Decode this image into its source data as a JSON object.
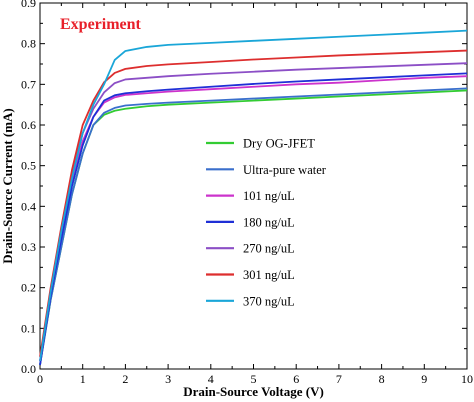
{
  "chart_data": {
    "type": "line",
    "title": "",
    "annotation": "Experiment",
    "annotation_color": "#e8202a",
    "xlabel": "Drain-Source  Voltage (V)",
    "ylabel": "Drain-Source  Current  (mA)",
    "xlim": [
      0,
      10
    ],
    "ylim": [
      0,
      0.9
    ],
    "xticks": [
      0,
      1,
      2,
      3,
      4,
      5,
      6,
      7,
      8,
      9,
      10
    ],
    "yticks": [
      0.0,
      0.1,
      0.2,
      0.3,
      0.4,
      0.5,
      0.6,
      0.7,
      0.8,
      0.9
    ],
    "ytick_labels": [
      "0.0",
      "0.1",
      "0.2",
      "0.3",
      "0.4",
      "0.5",
      "0.6",
      "0.7",
      "0.8",
      "0.9"
    ],
    "grid": false,
    "legend_position": "center-right",
    "x": [
      0,
      0.25,
      0.5,
      0.75,
      1.0,
      1.25,
      1.5,
      1.75,
      2.0,
      2.5,
      3,
      4,
      5,
      6,
      7,
      8,
      9,
      10
    ],
    "series": [
      {
        "name": "Dry OG-JFET",
        "color": "#33cc33",
        "values": [
          0.01,
          0.17,
          0.3,
          0.43,
          0.53,
          0.6,
          0.625,
          0.635,
          0.64,
          0.646,
          0.65,
          0.655,
          0.66,
          0.665,
          0.67,
          0.675,
          0.68,
          0.685
        ]
      },
      {
        "name": "Ultra-pure water",
        "color": "#3a6fcc",
        "values": [
          0.01,
          0.17,
          0.3,
          0.43,
          0.53,
          0.6,
          0.63,
          0.642,
          0.648,
          0.652,
          0.655,
          0.66,
          0.665,
          0.67,
          0.675,
          0.68,
          0.685,
          0.69
        ]
      },
      {
        "name": "101 ng/uL",
        "color": "#cc33cc",
        "values": [
          0.02,
          0.19,
          0.33,
          0.46,
          0.56,
          0.62,
          0.655,
          0.668,
          0.674,
          0.678,
          0.682,
          0.688,
          0.694,
          0.7,
          0.704,
          0.71,
          0.716,
          0.72
        ]
      },
      {
        "name": "180 ng/uL",
        "color": "#1f2fd6",
        "values": [
          0.01,
          0.18,
          0.32,
          0.45,
          0.55,
          0.62,
          0.66,
          0.673,
          0.678,
          0.683,
          0.687,
          0.694,
          0.701,
          0.707,
          0.712,
          0.717,
          0.722,
          0.727
        ]
      },
      {
        "name": "270 ng/uL",
        "color": "#8c4fc6",
        "values": [
          0.02,
          0.19,
          0.34,
          0.48,
          0.58,
          0.64,
          0.68,
          0.703,
          0.712,
          0.716,
          0.72,
          0.726,
          0.731,
          0.736,
          0.74,
          0.744,
          0.748,
          0.752
        ]
      },
      {
        "name": "301 ng/uL",
        "color": "#dd2e2e",
        "values": [
          0.03,
          0.2,
          0.35,
          0.49,
          0.6,
          0.66,
          0.705,
          0.728,
          0.738,
          0.745,
          0.749,
          0.755,
          0.761,
          0.766,
          0.771,
          0.775,
          0.779,
          0.783
        ]
      },
      {
        "name": "370 ng/uL",
        "color": "#1aa6d8",
        "values": [
          0.02,
          0.19,
          0.34,
          0.47,
          0.58,
          0.65,
          0.7,
          0.76,
          0.782,
          0.792,
          0.797,
          0.802,
          0.807,
          0.812,
          0.817,
          0.822,
          0.827,
          0.832
        ]
      }
    ]
  }
}
